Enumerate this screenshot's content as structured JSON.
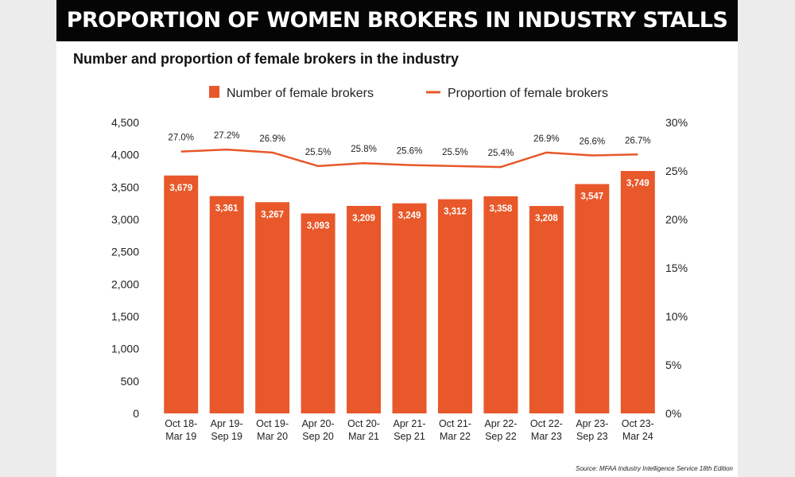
{
  "banner": {
    "title": "PROPORTION OF WOMEN BROKERS IN INDUSTRY STALLS"
  },
  "source": "Source: MFAA Industry Intelligence Service 18th Edition",
  "chart_data": {
    "type": "bar",
    "title": "Number and proportion of female brokers in the industry",
    "legend_position": "top",
    "grid": false,
    "categories": [
      [
        "Oct 18-",
        "Mar 19"
      ],
      [
        "Apr 19-",
        "Sep 19"
      ],
      [
        "Oct 19-",
        "Mar 20"
      ],
      [
        "Apr 20-",
        "Sep 20"
      ],
      [
        "Oct 20-",
        "Mar 21"
      ],
      [
        "Apr 21-",
        "Sep 21"
      ],
      [
        "Oct 21-",
        "Mar 22"
      ],
      [
        "Apr 22-",
        "Sep 22"
      ],
      [
        "Oct 22-",
        "Mar 23"
      ],
      [
        "Apr 23-",
        "Sep 23"
      ],
      [
        "Oct 23-",
        "Mar 24"
      ]
    ],
    "series": [
      {
        "name": "Number of female brokers",
        "type": "bar",
        "axis": "left",
        "color": "#e8582a",
        "values": [
          3679,
          3361,
          3267,
          3093,
          3209,
          3249,
          3312,
          3358,
          3208,
          3547,
          3749
        ],
        "labels": [
          "3,679",
          "3,361",
          "3,267",
          "3,093",
          "3,209",
          "3,249",
          "3,312",
          "3,358",
          "3,208",
          "3,547",
          "3,749"
        ]
      },
      {
        "name": "Proportion of female brokers",
        "type": "line",
        "axis": "right",
        "color": "#e8582a",
        "values": [
          27.0,
          27.2,
          26.9,
          25.5,
          25.8,
          25.6,
          25.5,
          25.4,
          26.9,
          26.6,
          26.7
        ],
        "labels": [
          "27.0%",
          "27.2%",
          "26.9%",
          "25.5%",
          "25.8%",
          "25.6%",
          "25.5%",
          "25.4%",
          "26.9%",
          "26.6%",
          "26.7%"
        ]
      }
    ],
    "y_left": {
      "lim": [
        0,
        4500
      ],
      "ticks": [
        0,
        500,
        1000,
        1500,
        2000,
        2500,
        3000,
        3500,
        4000,
        4500
      ],
      "tick_labels": [
        "0",
        "500",
        "1,000",
        "1,500",
        "2,000",
        "2,500",
        "3,000",
        "3,500",
        "4,000",
        "4,500"
      ]
    },
    "y_right": {
      "lim": [
        0,
        30
      ],
      "ticks": [
        0,
        5,
        10,
        15,
        20,
        25,
        30
      ],
      "tick_labels": [
        "0%",
        "5%",
        "10%",
        "15%",
        "20%",
        "25%",
        "30%"
      ]
    }
  }
}
